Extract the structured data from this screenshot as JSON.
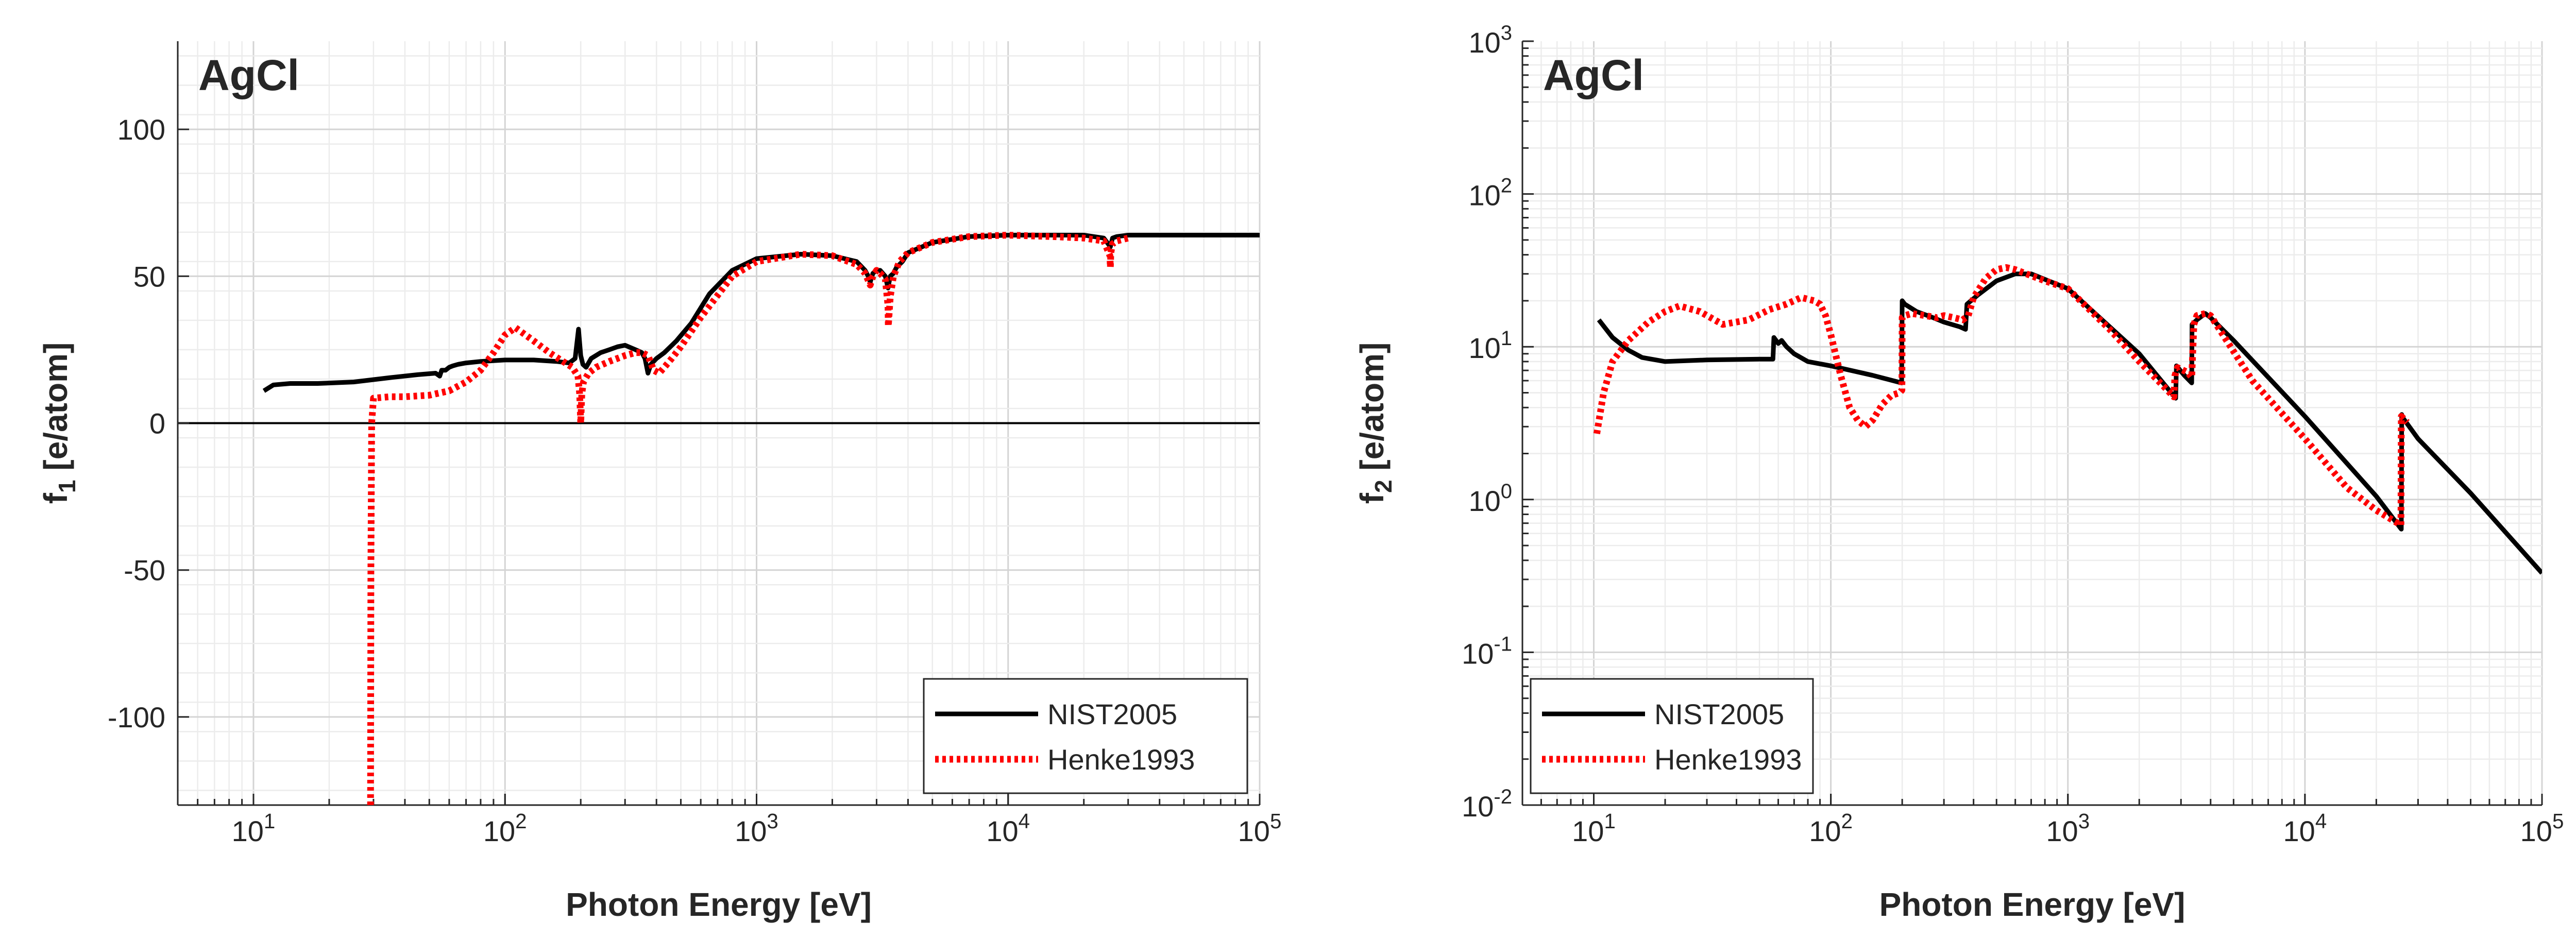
{
  "chart_data": [
    {
      "type": "line",
      "title": "AgCl",
      "xlabel": "Photon Energy [eV]",
      "ylabel_main": "f",
      "ylabel_sub": "1",
      "ylabel_unit": " [e/atom]",
      "xscale": "log",
      "yscale": "linear",
      "xlim": [
        5,
        100000
      ],
      "ylim": [
        -130,
        130
      ],
      "grid": true,
      "legend_position": "bottom-right",
      "xticks": [
        {
          "value": 10,
          "base": "10",
          "exp": "1"
        },
        {
          "value": 100,
          "base": "10",
          "exp": "2"
        },
        {
          "value": 1000,
          "base": "10",
          "exp": "3"
        },
        {
          "value": 10000,
          "base": "10",
          "exp": "4"
        },
        {
          "value": 100000,
          "base": "10",
          "exp": "5"
        }
      ],
      "yticks": [
        {
          "value": 100,
          "label": "100"
        },
        {
          "value": 50,
          "label": "50"
        },
        {
          "value": 0,
          "label": "0"
        },
        {
          "value": -50,
          "label": "-50"
        },
        {
          "value": -100,
          "label": "-100"
        }
      ],
      "series": [
        {
          "name": "NIST2005",
          "color": "#000000",
          "dash": "solid",
          "x": [
            11,
            12,
            14,
            18,
            25,
            35,
            45,
            53,
            55,
            56,
            58,
            60,
            62,
            65,
            70,
            80,
            100,
            130,
            160,
            180,
            190,
            196,
            200,
            204,
            210,
            220,
            240,
            260,
            280,
            300,
            330,
            350,
            360,
            370,
            380,
            400,
            430,
            480,
            550,
            650,
            800,
            1000,
            1500,
            2000,
            2500,
            2700,
            2780,
            2830,
            2900,
            3000,
            3100,
            3250,
            3330,
            3400,
            3500,
            3600,
            3800,
            4000,
            5000,
            7000,
            10000,
            15000,
            20000,
            24000,
            25000,
            25500,
            26000,
            27000,
            30000,
            40000,
            60000,
            100000
          ],
          "y": [
            11,
            13,
            13.5,
            13.5,
            14,
            15.5,
            16.5,
            17,
            16,
            18,
            18,
            19,
            19.5,
            20,
            20.5,
            21,
            21.5,
            21.5,
            21,
            20.5,
            22,
            32,
            23,
            20,
            19,
            22,
            24,
            25,
            26,
            26.5,
            25,
            24,
            22,
            17,
            20,
            22,
            24,
            28,
            34,
            44,
            52,
            56,
            57.5,
            57,
            55,
            52,
            50,
            48,
            51,
            52,
            52,
            50,
            46,
            50,
            51,
            53,
            55,
            58,
            61.5,
            63.5,
            64,
            64,
            64,
            63,
            61,
            60,
            63,
            63.5,
            64,
            64,
            64,
            64
          ]
        },
        {
          "name": "Henke1993",
          "color": "#ff0000",
          "dash": "dotted",
          "x": [
            29.2,
            29.3,
            29.5,
            30,
            35,
            40,
            50,
            60,
            70,
            80,
            90,
            100,
            110,
            130,
            150,
            170,
            185,
            195,
            198,
            200,
            202,
            205,
            215,
            230,
            260,
            300,
            330,
            350,
            370,
            390,
            410,
            430,
            460,
            500,
            600,
            800,
            1000,
            1500,
            2000,
            2500,
            2700,
            2830,
            2900,
            3000,
            3100,
            3250,
            3330,
            3340,
            3400,
            3500,
            3700,
            4000,
            5000,
            7000,
            10000,
            15000,
            20000,
            24000,
            25400,
            25500,
            25600,
            26000,
            27000,
            30000
          ],
          "y": [
            -130,
            -50,
            0,
            8.5,
            9,
            9,
            9.5,
            11,
            14,
            18,
            24,
            30,
            32.5,
            28,
            24,
            21,
            19,
            16,
            10,
            0,
            10,
            14,
            17,
            19,
            21,
            23,
            24,
            24,
            23,
            18,
            17,
            19,
            22,
            26,
            36,
            50,
            55,
            57.5,
            57,
            54,
            51,
            47,
            50,
            52,
            51,
            49,
            40,
            33,
            43,
            50,
            55,
            58,
            61.5,
            63.5,
            64,
            63.5,
            63,
            62,
            57,
            53,
            58,
            61,
            62,
            63
          ]
        }
      ]
    },
    {
      "type": "line",
      "title": "AgCl",
      "xlabel": "Photon Energy [eV]",
      "ylabel_main": "f",
      "ylabel_sub": "2",
      "ylabel_unit": " [e/atom]",
      "xscale": "log",
      "yscale": "log",
      "xlim": [
        5,
        100000
      ],
      "ylim": [
        0.01,
        1000
      ],
      "grid": true,
      "legend_position": "bottom-left",
      "xticks": [
        {
          "value": 10,
          "base": "10",
          "exp": "1"
        },
        {
          "value": 100,
          "base": "10",
          "exp": "2"
        },
        {
          "value": 1000,
          "base": "10",
          "exp": "3"
        },
        {
          "value": 10000,
          "base": "10",
          "exp": "4"
        },
        {
          "value": 100000,
          "base": "10",
          "exp": "5"
        }
      ],
      "yticks": [
        {
          "value": 1000,
          "base": "10",
          "exp": "3"
        },
        {
          "value": 100,
          "base": "10",
          "exp": "2"
        },
        {
          "value": 10,
          "base": "10",
          "exp": "1"
        },
        {
          "value": 1,
          "base": "10",
          "exp": "0"
        },
        {
          "value": 0.1,
          "base": "10",
          "exp": "-1"
        },
        {
          "value": 0.01,
          "base": "10",
          "exp": "-2"
        }
      ],
      "series": [
        {
          "name": "NIST2005",
          "color": "#000000",
          "dash": "solid",
          "x": [
            10.5,
            12,
            14,
            16,
            20,
            30,
            50,
            57,
            57.5,
            60,
            62,
            65,
            70,
            80,
            100,
            150,
            199,
            200,
            205,
            230,
            270,
            300,
            350,
            370,
            375,
            390,
            420,
            500,
            600,
            700,
            1000,
            2000,
            2850,
            2870,
            3100,
            3330,
            3340,
            3500,
            3700,
            3800,
            4000,
            5000,
            10000,
            20000,
            25500,
            25600,
            26000,
            30000,
            50000,
            100000
          ],
          "y": [
            15,
            11.5,
            9.5,
            8.5,
            8,
            8.2,
            8.3,
            8.3,
            11.5,
            10.5,
            11,
            10,
            9,
            8,
            7.5,
            6.5,
            5.8,
            20,
            19,
            17,
            15.5,
            14.5,
            13.5,
            13,
            19,
            20,
            22,
            27,
            30,
            30,
            24,
            9,
            4.6,
            7.5,
            6.5,
            5.8,
            14,
            15,
            16,
            16.5,
            15.5,
            11,
            3.5,
            1.05,
            0.64,
            3.6,
            3.4,
            2.5,
            1.1,
            0.33
          ]
        },
        {
          "name": "Henke1993",
          "color": "#ff0000",
          "dash": "dotted",
          "x": [
            10.3,
            11,
            12,
            14,
            17,
            20,
            23,
            28,
            35,
            45,
            55,
            65,
            75,
            85,
            90,
            95,
            100,
            110,
            120,
            130,
            140,
            150,
            165,
            180,
            195,
            199.5,
            200,
            205,
            220,
            250,
            280,
            300,
            330,
            360,
            380,
            400,
            450,
            500,
            550,
            600,
            800,
            1000,
            1500,
            2000,
            2800,
            2830,
            2900,
            3200,
            3330,
            3400,
            3500,
            3800,
            4000,
            6000,
            10000,
            15000,
            20000,
            25400,
            25500,
            26000,
            27000
          ],
          "y": [
            2.7,
            5,
            8,
            11,
            14.5,
            17,
            18.5,
            17,
            14,
            15,
            17.5,
            19,
            21,
            20,
            19,
            16,
            12,
            6.5,
            4,
            3.3,
            3,
            3.3,
            4.2,
            4.8,
            5,
            5.2,
            15.5,
            16,
            16.5,
            16,
            15.5,
            16,
            15.5,
            15,
            16,
            21,
            28,
            32,
            33,
            32,
            27,
            24,
            13,
            8,
            4.7,
            6.5,
            7.3,
            6.8,
            6.3,
            14,
            16,
            16.5,
            16,
            6,
            2.5,
            1.2,
            0.85,
            0.68,
            3.5,
            3.4,
            3.2
          ]
        }
      ]
    }
  ]
}
